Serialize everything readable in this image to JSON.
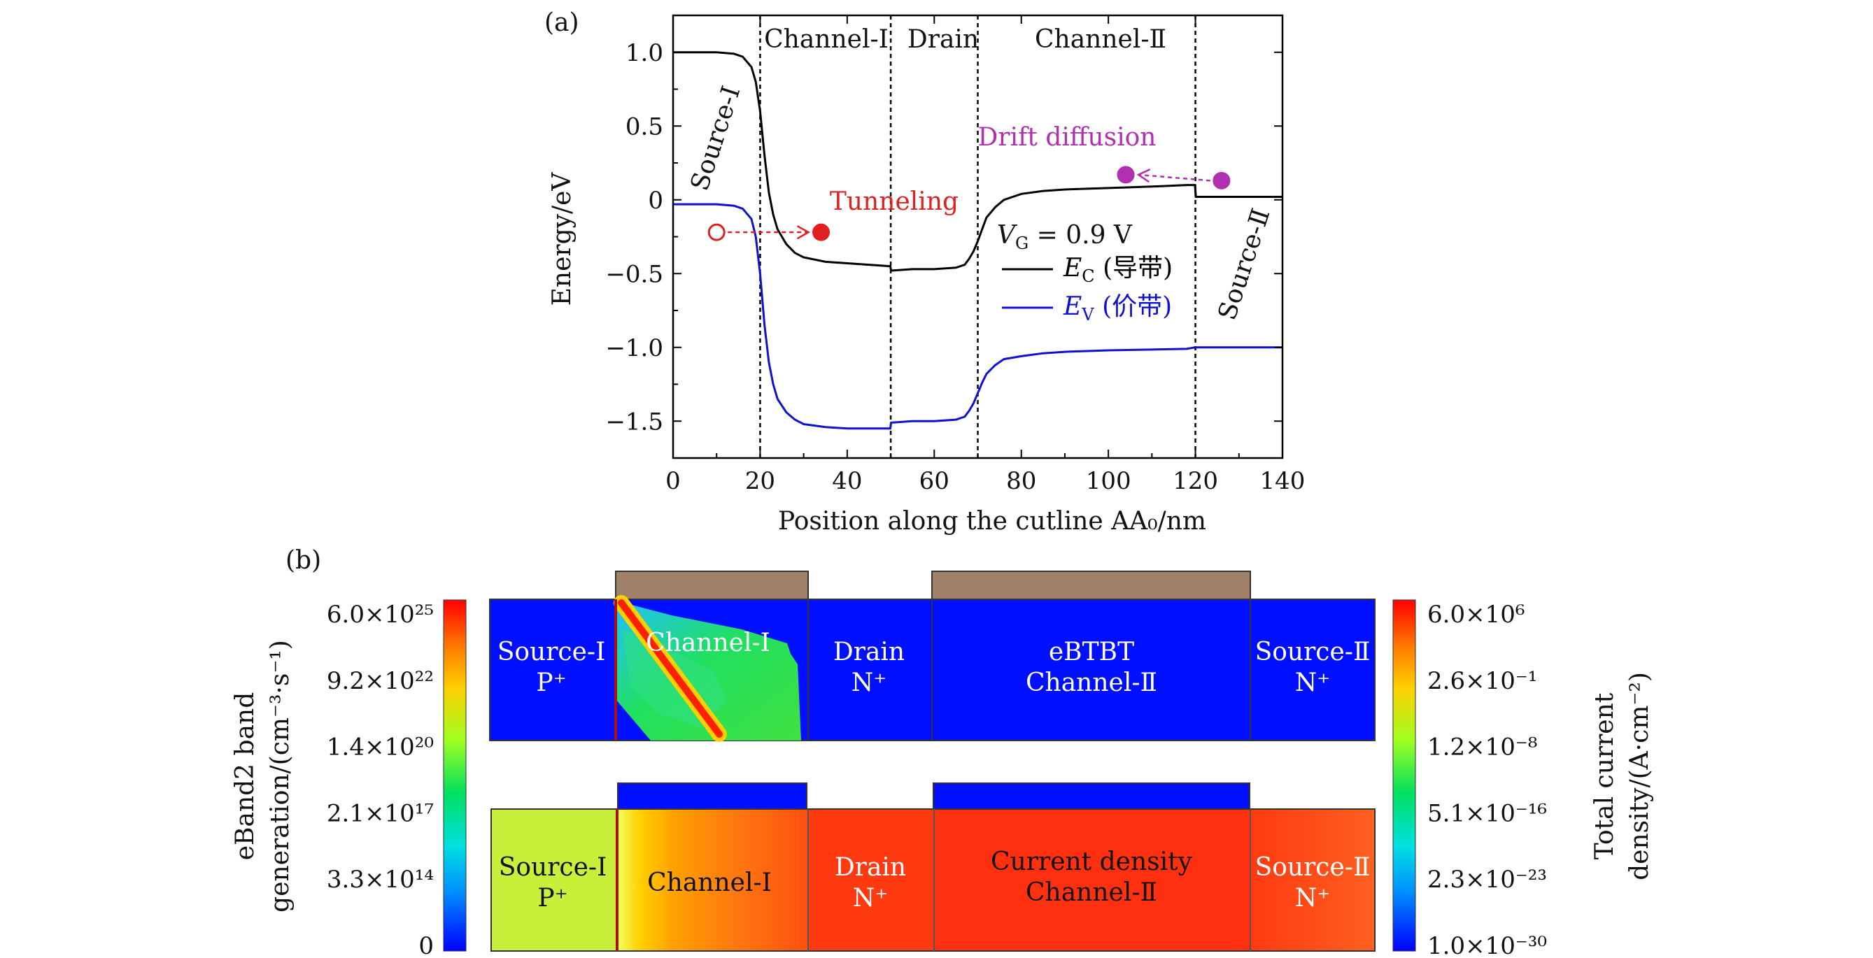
{
  "panel_a": {
    "label": "(a)",
    "chart_data": {
      "type": "line",
      "xlabel": "Position along the cutline AA₀/nm",
      "ylabel": "Energy/eV",
      "xlim": [
        0,
        140
      ],
      "ylim": [
        -1.75,
        1.25
      ],
      "xticks": [
        0,
        20,
        40,
        60,
        80,
        100,
        120,
        140
      ],
      "yticks": [
        1.0,
        0.5,
        0,
        -0.5,
        -1.0,
        -1.5
      ],
      "ytick_labels": [
        "1.0",
        "0.5",
        "0",
        "−0.5",
        "−1.0",
        "−1.5"
      ],
      "region_boundaries": [
        20,
        50,
        70,
        120
      ],
      "region_labels": [
        "Channel-Ⅰ",
        "Drain",
        "Channel-Ⅱ"
      ],
      "source1_label": "Source-Ⅰ",
      "source2_label": "Source-Ⅱ",
      "annotation": "V_G = 0.9 V",
      "annotation_text": "V",
      "annotation_sub": "G",
      "annotation_value": " = 0.9 V",
      "series": [
        {
          "name": "E_C (导带)",
          "legend_var": "E",
          "legend_sub": "C",
          "legend_rest": " (导带)",
          "color": "#000000",
          "x": [
            0,
            5,
            10,
            14,
            16,
            18,
            19,
            20,
            21,
            22,
            23,
            24,
            26,
            28,
            30,
            35,
            40,
            45,
            49.9,
            50.1,
            55,
            60,
            65,
            67,
            68,
            69,
            70,
            71,
            72,
            74,
            76,
            80,
            85,
            90,
            100,
            110,
            118,
            119.9,
            120.1,
            125,
            130,
            140
          ],
          "y": [
            1.0,
            1.0,
            1.0,
            0.99,
            0.97,
            0.9,
            0.8,
            0.6,
            0.3,
            0.05,
            -0.1,
            -0.2,
            -0.3,
            -0.36,
            -0.39,
            -0.42,
            -0.43,
            -0.44,
            -0.45,
            -0.48,
            -0.47,
            -0.47,
            -0.46,
            -0.44,
            -0.4,
            -0.35,
            -0.28,
            -0.2,
            -0.12,
            -0.05,
            0.0,
            0.04,
            0.06,
            0.07,
            0.08,
            0.09,
            0.1,
            0.1,
            0.02,
            0.02,
            0.02,
            0.02
          ]
        },
        {
          "name": "E_V (价带)",
          "legend_var": "E",
          "legend_sub": "V",
          "legend_rest": " (价带)",
          "color": "#1010d0",
          "x": [
            0,
            5,
            10,
            14,
            16,
            18,
            19,
            20,
            21,
            22,
            23,
            24,
            26,
            28,
            30,
            35,
            40,
            45,
            49.9,
            50.1,
            55,
            60,
            65,
            67,
            68,
            69,
            70,
            71,
            72,
            74,
            76,
            80,
            85,
            90,
            100,
            110,
            118,
            119.9,
            120.1,
            125,
            130,
            140
          ],
          "y": [
            -0.03,
            -0.03,
            -0.03,
            -0.04,
            -0.06,
            -0.13,
            -0.25,
            -0.5,
            -0.85,
            -1.1,
            -1.25,
            -1.35,
            -1.44,
            -1.49,
            -1.52,
            -1.54,
            -1.55,
            -1.55,
            -1.55,
            -1.51,
            -1.5,
            -1.5,
            -1.49,
            -1.47,
            -1.43,
            -1.38,
            -1.31,
            -1.24,
            -1.18,
            -1.12,
            -1.08,
            -1.06,
            -1.04,
            -1.03,
            -1.02,
            -1.015,
            -1.01,
            -1.0,
            -1.0,
            -1.0,
            -1.0,
            -1.0
          ]
        }
      ],
      "annotations": [
        {
          "text": "Tunneling",
          "color": "#e02020",
          "from_x": 10,
          "from_y": -0.22,
          "to_x": 34,
          "to_y": -0.22,
          "from_filled": false,
          "to_filled": true
        },
        {
          "text": "Drift diffusion",
          "color": "#b030b0",
          "from_x": 126,
          "from_y": 0.13,
          "to_x": 104,
          "to_y": 0.17,
          "from_filled": true,
          "to_filled": true
        }
      ]
    }
  },
  "panel_b": {
    "label": "(b)",
    "left_colorbar": {
      "title_line1": "eBand2 band",
      "title_line2": "generation/(cm⁻³·s⁻¹)",
      "ticks": [
        "6.0×10²⁵",
        "9.2×10²²",
        "1.4×10²⁰",
        "2.1×10¹⁷",
        "3.3×10¹⁴",
        "0"
      ]
    },
    "right_colorbar": {
      "title_line1": "Total current",
      "title_line2": "density/(A·cm⁻²)",
      "ticks": [
        "6.0×10⁶",
        "2.6×10⁻¹",
        "1.2×10⁻⁸",
        "5.1×10⁻¹⁶",
        "2.3×10⁻²³",
        "1.0×10⁻³⁰"
      ]
    },
    "top_map": {
      "regions": [
        {
          "line1": "Source-Ⅰ",
          "line2": "P⁺"
        },
        {
          "line1": "Channel-Ⅰ",
          "line2": ""
        },
        {
          "line1": "Drain",
          "line2": "N⁺"
        },
        {
          "line1": "eBTBT",
          "line2": "Channel-Ⅱ"
        },
        {
          "line1": "Source-Ⅱ",
          "line2": "N⁺"
        }
      ]
    },
    "bottom_map": {
      "regions": [
        {
          "line1": "Source-Ⅰ",
          "line2": "P⁺"
        },
        {
          "line1": "Channel-Ⅰ",
          "line2": ""
        },
        {
          "line1": "Drain",
          "line2": "N⁺"
        },
        {
          "line1": "Current density",
          "line2": "Channel-Ⅱ"
        },
        {
          "line1": "Source-Ⅱ",
          "line2": "N⁺"
        }
      ]
    }
  }
}
